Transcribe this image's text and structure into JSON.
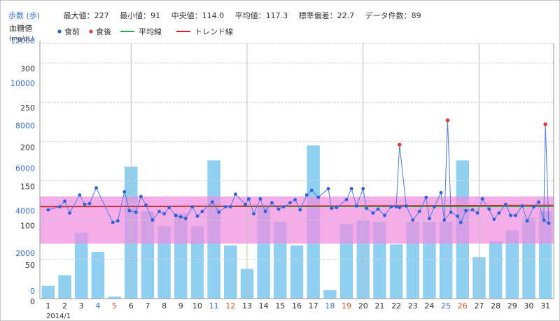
{
  "stats": {
    "steps_label": "歩数 (歩)",
    "max": "最大値：227",
    "min": "最小値：91",
    "median": "中央値：114.0",
    "mean": "平均値：117.3",
    "std": "標準偏差：22.7",
    "count": "データ件数：89"
  },
  "chart_data": {
    "type": "bar+line",
    "ylabel_left_line1": "血糖値",
    "ylabel_left_line2": "(mg/dL)",
    "steps_axis": {
      "ticks": [
        "0",
        "2000",
        "4000",
        "6000",
        "8000",
        "10000",
        "12000"
      ],
      "range": [
        0,
        12000
      ]
    },
    "glucose_axis": {
      "ticks": [
        "0",
        "50",
        "100",
        "150",
        "200",
        "250",
        "300"
      ],
      "range": [
        0,
        325
      ]
    },
    "x_ticks": [
      "1",
      "2",
      "3",
      "4",
      "5",
      "6",
      "7",
      "8",
      "9",
      "10",
      "11",
      "12",
      "13",
      "14",
      "15",
      "16",
      "17",
      "18",
      "19",
      "20",
      "21",
      "22",
      "23",
      "24",
      "25",
      "26",
      "27",
      "28",
      "29",
      "30",
      "31"
    ],
    "x_tick_colors": {
      "4": "#3b6fd6",
      "5": "#e0572a",
      "11": "#3b6fd6",
      "12": "#e0572a",
      "18": "#3b6fd6",
      "19": "#e0572a",
      "25": "#3b6fd6",
      "26": "#e0572a"
    },
    "x_sublabel": "2014/1",
    "target_range": {
      "low": 70,
      "high": 130,
      "color": "#f08ae0"
    },
    "mean_line": {
      "value": 117.3,
      "color": "#28a745"
    },
    "trend_line": {
      "start": 117,
      "end": 119,
      "color": "#d8202a"
    },
    "steps": [
      600,
      1100,
      3100,
      2200,
      100,
      6200,
      4100,
      3400,
      4000,
      3400,
      6500,
      2500,
      1400,
      4300,
      3600,
      2500,
      7200,
      400,
      3500,
      3700,
      3600,
      2550,
      3600,
      3600,
      3600,
      6500,
      1950,
      2700,
      3200,
      3800,
      4100
    ],
    "glucose_series": [
      {
        "x": 1.0,
        "y": 113
      },
      {
        "x": 1.7,
        "y": 117
      },
      {
        "x": 2.0,
        "y": 124
      },
      {
        "x": 2.3,
        "y": 109
      },
      {
        "x": 2.9,
        "y": 132
      },
      {
        "x": 3.2,
        "y": 120
      },
      {
        "x": 3.5,
        "y": 121
      },
      {
        "x": 3.9,
        "y": 141
      },
      {
        "x": 4.9,
        "y": 97
      },
      {
        "x": 5.2,
        "y": 99
      },
      {
        "x": 5.6,
        "y": 136
      },
      {
        "x": 5.9,
        "y": 112
      },
      {
        "x": 6.3,
        "y": 110
      },
      {
        "x": 6.6,
        "y": 130
      },
      {
        "x": 6.9,
        "y": 119
      },
      {
        "x": 7.3,
        "y": 100
      },
      {
        "x": 7.7,
        "y": 111
      },
      {
        "x": 8.0,
        "y": 108
      },
      {
        "x": 8.3,
        "y": 116
      },
      {
        "x": 8.7,
        "y": 106
      },
      {
        "x": 9.0,
        "y": 104
      },
      {
        "x": 9.3,
        "y": 102
      },
      {
        "x": 9.7,
        "y": 117
      },
      {
        "x": 10.0,
        "y": 105
      },
      {
        "x": 10.3,
        "y": 111
      },
      {
        "x": 10.9,
        "y": 123
      },
      {
        "x": 11.3,
        "y": 110
      },
      {
        "x": 11.7,
        "y": 117
      },
      {
        "x": 12.0,
        "y": 117
      },
      {
        "x": 12.3,
        "y": 133
      },
      {
        "x": 12.9,
        "y": 120
      },
      {
        "x": 13.1,
        "y": 127
      },
      {
        "x": 13.4,
        "y": 108
      },
      {
        "x": 13.8,
        "y": 127
      },
      {
        "x": 14.1,
        "y": 111
      },
      {
        "x": 14.5,
        "y": 122
      },
      {
        "x": 14.9,
        "y": 114
      },
      {
        "x": 15.2,
        "y": 117
      },
      {
        "x": 15.6,
        "y": 122
      },
      {
        "x": 15.9,
        "y": 126
      },
      {
        "x": 16.2,
        "y": 113
      },
      {
        "x": 16.6,
        "y": 132
      },
      {
        "x": 16.9,
        "y": 138
      },
      {
        "x": 17.3,
        "y": 129
      },
      {
        "x": 17.9,
        "y": 140
      },
      {
        "x": 18.1,
        "y": 115
      },
      {
        "x": 18.4,
        "y": 116
      },
      {
        "x": 19.0,
        "y": 126
      },
      {
        "x": 19.3,
        "y": 140
      },
      {
        "x": 19.6,
        "y": 118
      },
      {
        "x": 20.0,
        "y": 140
      },
      {
        "x": 20.2,
        "y": 115
      },
      {
        "x": 20.6,
        "y": 109
      },
      {
        "x": 20.9,
        "y": 114
      },
      {
        "x": 21.3,
        "y": 106
      },
      {
        "x": 21.7,
        "y": 117
      },
      {
        "x": 22.0,
        "y": 117
      },
      {
        "x": 22.2,
        "y": 116
      },
      {
        "x": 22.6,
        "y": 118
      },
      {
        "x": 23.0,
        "y": 100
      },
      {
        "x": 23.4,
        "y": 111
      },
      {
        "x": 23.8,
        "y": 129
      },
      {
        "x": 24.0,
        "y": 102
      },
      {
        "x": 24.3,
        "y": 117
      },
      {
        "x": 24.7,
        "y": 135
      },
      {
        "x": 24.9,
        "y": 100
      },
      {
        "x": 25.3,
        "y": 110
      },
      {
        "x": 25.7,
        "y": 105
      },
      {
        "x": 25.9,
        "y": 97
      },
      {
        "x": 26.2,
        "y": 112
      },
      {
        "x": 26.6,
        "y": 113
      },
      {
        "x": 26.9,
        "y": 109
      },
      {
        "x": 27.2,
        "y": 127
      },
      {
        "x": 27.6,
        "y": 114
      },
      {
        "x": 27.9,
        "y": 101
      },
      {
        "x": 28.2,
        "y": 109
      },
      {
        "x": 28.6,
        "y": 120
      },
      {
        "x": 28.9,
        "y": 106
      },
      {
        "x": 29.2,
        "y": 106
      },
      {
        "x": 29.6,
        "y": 118
      },
      {
        "x": 29.9,
        "y": 99
      },
      {
        "x": 30.3,
        "y": 117
      },
      {
        "x": 30.6,
        "y": 123
      },
      {
        "x": 30.9,
        "y": 100
      },
      {
        "x": 31.2,
        "y": 96
      }
    ],
    "postmeal_points": [
      {
        "x": 22.2,
        "y": 196
      },
      {
        "x": 25.1,
        "y": 227
      },
      {
        "x": 31.0,
        "y": 222
      }
    ],
    "postmeal_connect_prev": [
      22.0,
      24.9,
      30.9
    ],
    "postmeal_connect_next": [
      22.6,
      25.3,
      31.2
    ],
    "legend": [
      {
        "label": "食前",
        "kind": "dot",
        "color": "#2f5fd8"
      },
      {
        "label": "食後",
        "kind": "dot",
        "color": "#e23b3b"
      },
      {
        "label": "平均線",
        "kind": "line",
        "color": "#28a745"
      },
      {
        "label": "トレンド線",
        "kind": "line",
        "color": "#d8202a"
      }
    ],
    "colors": {
      "bars": "#8fd0f0",
      "line": "#4b7be0",
      "premeal": "#2f5fd8",
      "postmeal": "#e23b3b",
      "grid": "#d0d0d0",
      "axis_steps": "#3b6fd6"
    }
  }
}
